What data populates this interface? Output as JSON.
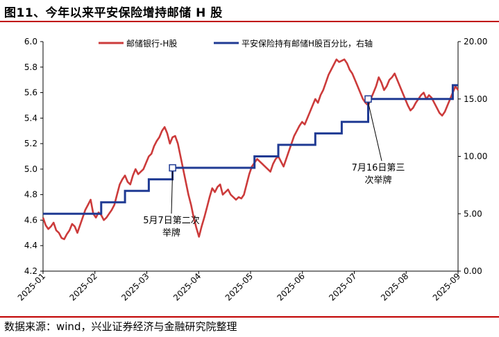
{
  "title": "图11、今年以来平安保险增持邮储 H 股",
  "source": "数据来源：wind，兴业证券经济与金融研究院整理",
  "chart_data": {
    "type": "line",
    "x_labels": [
      "2025-01",
      "2025-02",
      "2025-03",
      "2025-04",
      "2025-05",
      "2025-06",
      "2025-07",
      "2025-08",
      "2025-09"
    ],
    "ylim_left": [
      4.2,
      6.0
    ],
    "yticks_left": [
      "4.2",
      "4.4",
      "4.6",
      "4.8",
      "5.0",
      "5.2",
      "5.4",
      "5.6",
      "5.8",
      "6.0"
    ],
    "ylim_right": [
      0,
      20
    ],
    "yticks_right": [
      "0.00",
      "5.00",
      "10.00",
      "15.00",
      "20.00"
    ],
    "grid": false,
    "legend_position": "top",
    "colors": {
      "price": "#cc3b3b",
      "holding": "#1f3a93"
    },
    "series": [
      {
        "name": "邮储银行-H股",
        "axis": "left",
        "points": [
          [
            0,
            4.62
          ],
          [
            1,
            4.56
          ],
          [
            2,
            4.53
          ],
          [
            3,
            4.55
          ],
          [
            4,
            4.58
          ],
          [
            5,
            4.52
          ],
          [
            6,
            4.5
          ],
          [
            7,
            4.46
          ],
          [
            8,
            4.45
          ],
          [
            9,
            4.49
          ],
          [
            10,
            4.52
          ],
          [
            11,
            4.57
          ],
          [
            12,
            4.55
          ],
          [
            13,
            4.5
          ],
          [
            14,
            4.56
          ],
          [
            15,
            4.62
          ],
          [
            16,
            4.68
          ],
          [
            17,
            4.72
          ],
          [
            18,
            4.76
          ],
          [
            19,
            4.65
          ],
          [
            20,
            4.62
          ],
          [
            21,
            4.66
          ],
          [
            22,
            4.64
          ],
          [
            23,
            4.6
          ],
          [
            24,
            4.62
          ],
          [
            25,
            4.65
          ],
          [
            26,
            4.68
          ],
          [
            27,
            4.72
          ],
          [
            28,
            4.8
          ],
          [
            29,
            4.88
          ],
          [
            30,
            4.92
          ],
          [
            31,
            4.95
          ],
          [
            32,
            4.9
          ],
          [
            33,
            4.88
          ],
          [
            34,
            4.95
          ],
          [
            35,
            5.0
          ],
          [
            36,
            4.96
          ],
          [
            37,
            4.98
          ],
          [
            38,
            5.0
          ],
          [
            39,
            5.05
          ],
          [
            40,
            5.1
          ],
          [
            41,
            5.12
          ],
          [
            42,
            5.18
          ],
          [
            43,
            5.22
          ],
          [
            44,
            5.25
          ],
          [
            45,
            5.3
          ],
          [
            46,
            5.33
          ],
          [
            47,
            5.28
          ],
          [
            48,
            5.2
          ],
          [
            49,
            5.25
          ],
          [
            50,
            5.26
          ],
          [
            51,
            5.2
          ],
          [
            52,
            5.1
          ],
          [
            53,
            5.0
          ],
          [
            54,
            4.9
          ],
          [
            55,
            4.8
          ],
          [
            56,
            4.72
          ],
          [
            57,
            4.62
          ],
          [
            58,
            4.54
          ],
          [
            59,
            4.47
          ],
          [
            60,
            4.55
          ],
          [
            61,
            4.62
          ],
          [
            62,
            4.7
          ],
          [
            63,
            4.78
          ],
          [
            64,
            4.85
          ],
          [
            65,
            4.82
          ],
          [
            66,
            4.86
          ],
          [
            67,
            4.88
          ],
          [
            68,
            4.8
          ],
          [
            69,
            4.82
          ],
          [
            70,
            4.84
          ],
          [
            71,
            4.8
          ],
          [
            72,
            4.78
          ],
          [
            73,
            4.76
          ],
          [
            74,
            4.78
          ],
          [
            75,
            4.77
          ],
          [
            76,
            4.8
          ],
          [
            77,
            4.88
          ],
          [
            78,
            4.96
          ],
          [
            79,
            5.02
          ],
          [
            80,
            5.05
          ],
          [
            81,
            5.08
          ],
          [
            82,
            5.06
          ],
          [
            83,
            5.04
          ],
          [
            84,
            5.02
          ],
          [
            85,
            5.0
          ],
          [
            86,
            4.98
          ],
          [
            87,
            5.04
          ],
          [
            88,
            5.08
          ],
          [
            89,
            5.1
          ],
          [
            90,
            5.06
          ],
          [
            91,
            5.02
          ],
          [
            92,
            5.08
          ],
          [
            93,
            5.14
          ],
          [
            94,
            5.2
          ],
          [
            95,
            5.26
          ],
          [
            96,
            5.3
          ],
          [
            97,
            5.34
          ],
          [
            98,
            5.37
          ],
          [
            99,
            5.35
          ],
          [
            100,
            5.4
          ],
          [
            101,
            5.45
          ],
          [
            102,
            5.5
          ],
          [
            103,
            5.55
          ],
          [
            104,
            5.52
          ],
          [
            105,
            5.58
          ],
          [
            106,
            5.62
          ],
          [
            107,
            5.68
          ],
          [
            108,
            5.74
          ],
          [
            109,
            5.78
          ],
          [
            110,
            5.82
          ],
          [
            111,
            5.86
          ],
          [
            112,
            5.84
          ],
          [
            113,
            5.85
          ],
          [
            114,
            5.86
          ],
          [
            115,
            5.83
          ],
          [
            116,
            5.78
          ],
          [
            117,
            5.75
          ],
          [
            118,
            5.7
          ],
          [
            119,
            5.65
          ],
          [
            120,
            5.6
          ],
          [
            121,
            5.55
          ],
          [
            122,
            5.52
          ],
          [
            123,
            5.5
          ],
          [
            124,
            5.55
          ],
          [
            125,
            5.6
          ],
          [
            126,
            5.65
          ],
          [
            127,
            5.72
          ],
          [
            128,
            5.68
          ],
          [
            129,
            5.62
          ],
          [
            130,
            5.65
          ],
          [
            131,
            5.7
          ],
          [
            132,
            5.72
          ],
          [
            133,
            5.75
          ],
          [
            134,
            5.7
          ],
          [
            135,
            5.65
          ],
          [
            136,
            5.6
          ],
          [
            137,
            5.55
          ],
          [
            138,
            5.5
          ],
          [
            139,
            5.46
          ],
          [
            140,
            5.48
          ],
          [
            141,
            5.52
          ],
          [
            142,
            5.55
          ],
          [
            143,
            5.58
          ],
          [
            144,
            5.6
          ],
          [
            145,
            5.55
          ],
          [
            146,
            5.58
          ],
          [
            147,
            5.56
          ],
          [
            148,
            5.52
          ],
          [
            149,
            5.48
          ],
          [
            150,
            5.44
          ],
          [
            151,
            5.42
          ],
          [
            152,
            5.45
          ],
          [
            153,
            5.5
          ],
          [
            154,
            5.55
          ],
          [
            155,
            5.6
          ],
          [
            156,
            5.65
          ],
          [
            157,
            5.62
          ]
        ]
      },
      {
        "name": "平安保险持有邮储H股百分比，右轴",
        "axis": "right",
        "points": [
          [
            0,
            5.0
          ],
          [
            22,
            5.0
          ],
          [
            22,
            6.0
          ],
          [
            31,
            6.0
          ],
          [
            31,
            7.0
          ],
          [
            40,
            7.0
          ],
          [
            40,
            8.0
          ],
          [
            49,
            8.0
          ],
          [
            49,
            9.0
          ],
          [
            80,
            9.0
          ],
          [
            80,
            10.0
          ],
          [
            89,
            10.0
          ],
          [
            89,
            11.0
          ],
          [
            103,
            11.0
          ],
          [
            103,
            12.0
          ],
          [
            113,
            12.0
          ],
          [
            113,
            13.0
          ],
          [
            123,
            13.0
          ],
          [
            123,
            15.0
          ],
          [
            155,
            15.0
          ],
          [
            155,
            16.2
          ],
          [
            157,
            16.2
          ]
        ]
      }
    ],
    "annotations": [
      {
        "text_lines": [
          "5月7日第二次",
          "举牌"
        ],
        "x": 49,
        "y": 9.0,
        "axis": "right"
      },
      {
        "text_lines": [
          "7月16日第三",
          "次举牌"
        ],
        "x": 123,
        "y": 15.0,
        "axis": "right"
      }
    ]
  }
}
